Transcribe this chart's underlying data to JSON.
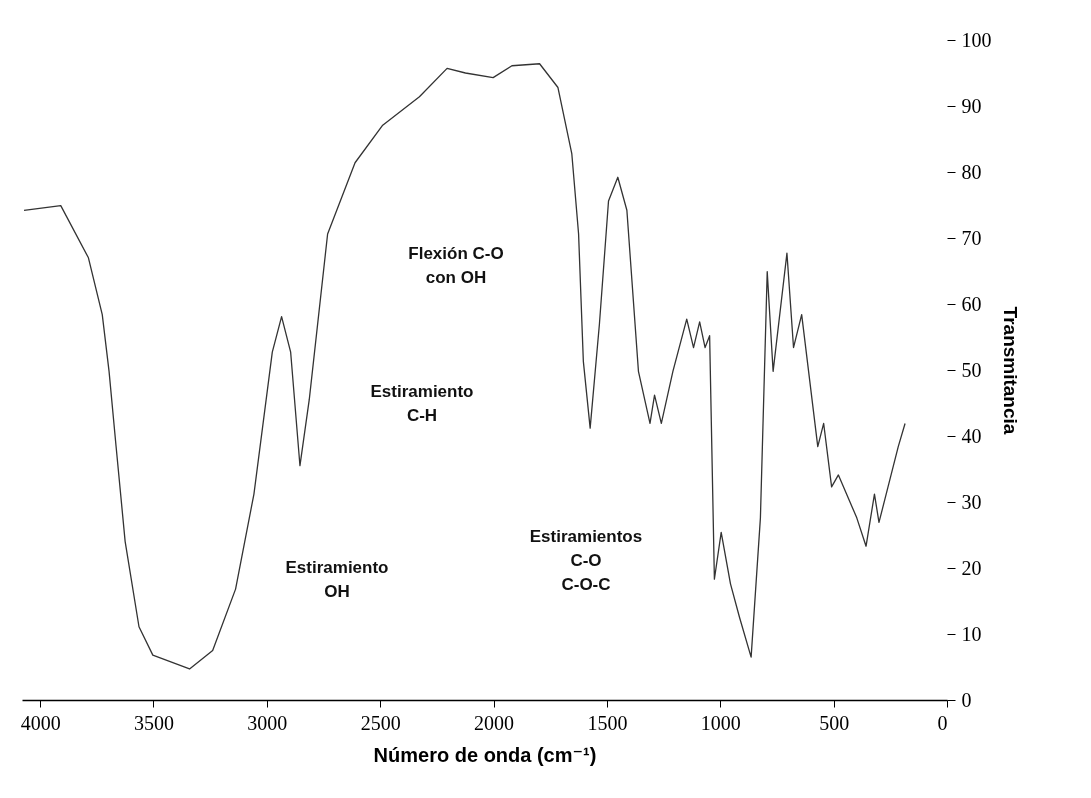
{
  "chart_data": {
    "type": "line",
    "xlabel": "Número de onda (cm⁻¹)",
    "ylabel": "Transmitancia",
    "color": "#333333",
    "x": [
      4071,
      3909,
      3787,
      3726,
      3696,
      3665,
      3625,
      3564,
      3503,
      3341,
      3239,
      3138,
      3057,
      2976,
      2935,
      2895,
      2854,
      2813,
      2732,
      2611,
      2489,
      2327,
      2205,
      2124,
      2002,
      1919,
      1797,
      1716,
      1655,
      1625,
      1604,
      1574,
      1533,
      1493,
      1452,
      1412,
      1361,
      1310,
      1290,
      1260,
      1209,
      1148,
      1118,
      1091,
      1067,
      1047,
      1026,
      996,
      955,
      915,
      864,
      823,
      793,
      767,
      706,
      677,
      641,
      570,
      544,
      509,
      479,
      398,
      357,
      320,
      300,
      215,
      185
    ],
    "values": [
      74.2,
      74.9,
      67.0,
      58.4,
      49.8,
      38.4,
      24.0,
      11.1,
      6.8,
      4.7,
      7.5,
      16.8,
      31.2,
      52.7,
      58.1,
      52.7,
      35.5,
      45.5,
      70.6,
      81.4,
      87.1,
      91.4,
      95.7,
      95.0,
      94.3,
      96.1,
      96.4,
      92.8,
      82.8,
      70.6,
      51.3,
      41.2,
      57.0,
      75.6,
      79.2,
      74.2,
      49.8,
      41.9,
      46.2,
      41.9,
      49.8,
      57.7,
      53.4,
      57.3,
      53.4,
      55.2,
      18.3,
      25.4,
      17.6,
      12.5,
      6.5,
      27.6,
      64.9,
      49.8,
      67.7,
      53.4,
      58.4,
      38.4,
      41.9,
      32.3,
      34.1,
      27.6,
      23.3,
      31.2,
      26.9,
      38.4,
      41.9
    ],
    "xlim": [
      4080,
      0
    ],
    "xticks": [
      4000,
      3500,
      3000,
      2500,
      2000,
      1500,
      1000,
      500,
      0
    ],
    "ylim": [
      0,
      100
    ],
    "yticks": [
      0,
      10,
      20,
      30,
      40,
      50,
      60,
      70,
      80,
      90,
      100
    ],
    "annotations": [
      "Flexión C-O\ncon OH",
      "Estiramiento\nC-H",
      "Estiramiento\nOH",
      "Estiramientos\nC-O\nC-O-C"
    ]
  }
}
